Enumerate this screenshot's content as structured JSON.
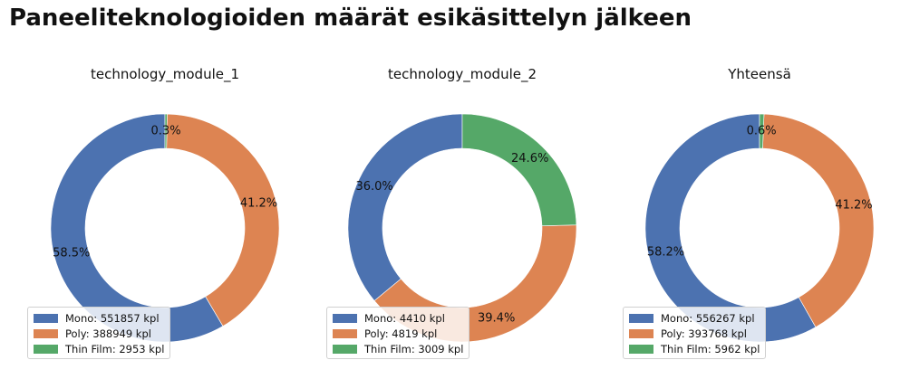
{
  "title": "Paneeliteknologioiden määrät esikäsittelyn jälkeen",
  "colors": {
    "Mono": "#4c72b0",
    "Poly": "#dd8452",
    "Thin Film": "#55a868"
  },
  "chart_data": [
    {
      "type": "pie",
      "title": "technology_module_1",
      "labels": [
        "Mono",
        "Poly",
        "Thin Film"
      ],
      "values": [
        551857,
        388949,
        2953
      ],
      "percent_labels": [
        "58.5%",
        "41.2%",
        "0.3%"
      ],
      "legend_entries": [
        "Mono: 551857 kpl",
        "Poly: 388949 kpl",
        "Thin Film: 2953 kpl"
      ],
      "legend": "lower left"
    },
    {
      "type": "pie",
      "title": "technology_module_2",
      "labels": [
        "Mono",
        "Poly",
        "Thin Film"
      ],
      "values": [
        4410,
        4819,
        3009
      ],
      "percent_labels": [
        "36.0%",
        "39.4%",
        "24.6%"
      ],
      "legend_entries": [
        "Mono: 4410 kpl",
        "Poly: 4819 kpl",
        "Thin Film: 3009 kpl"
      ],
      "legend": "lower left"
    },
    {
      "type": "pie",
      "title": "Yhteensä",
      "labels": [
        "Mono",
        "Poly",
        "Thin Film"
      ],
      "values": [
        556267,
        393768,
        5962
      ],
      "percent_labels": [
        "58.2%",
        "41.2%",
        "0.6%"
      ],
      "legend_entries": [
        "Mono: 556267 kpl",
        "Poly: 393768 kpl",
        "Thin Film: 5962 kpl"
      ],
      "legend": "lower left"
    }
  ]
}
